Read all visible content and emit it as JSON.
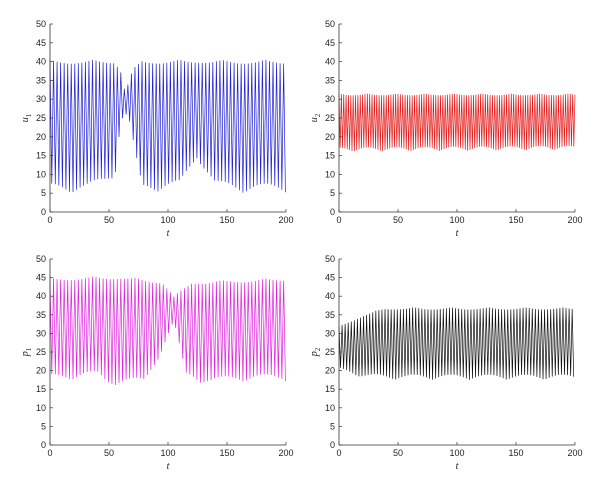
{
  "chart_data": [
    {
      "type": "line",
      "xlabel": "t",
      "ylabel": "u",
      "ylabel_sub": "1",
      "xlim": [
        0,
        200
      ],
      "ylim": [
        0,
        50
      ],
      "xticks": [
        "0",
        "50",
        "100",
        "150",
        "200"
      ],
      "yticks": [
        "0",
        "5",
        "10",
        "15",
        "20",
        "25",
        "30",
        "35",
        "40",
        "45",
        "50"
      ],
      "series": [
        {
          "color": "#1f1fd6",
          "period": 3.0,
          "band_high": [
            [
              0,
              40.5
            ],
            [
              55,
              40.5
            ],
            [
              60,
              37.5
            ],
            [
              63,
              33
            ],
            [
              66,
              34
            ],
            [
              70,
              38
            ],
            [
              78,
              40.5
            ],
            [
              200,
              40.5
            ]
          ],
          "band_low": [
            [
              0,
              5
            ],
            [
              30,
              5
            ],
            [
              45,
              7
            ],
            [
              55,
              9
            ],
            [
              60,
              24
            ],
            [
              66,
              26
            ],
            [
              72,
              15
            ],
            [
              78,
              5
            ],
            [
              110,
              6
            ],
            [
              125,
              14
            ],
            [
              140,
              6
            ],
            [
              160,
              5
            ],
            [
              200,
              5
            ]
          ]
        }
      ]
    },
    {
      "type": "line",
      "xlabel": "t",
      "ylabel": "u",
      "ylabel_sub": "2",
      "xlim": [
        0,
        200
      ],
      "ylim": [
        0,
        50
      ],
      "xticks": [
        "0",
        "50",
        "100",
        "150",
        "200"
      ],
      "yticks": [
        "0",
        "5",
        "10",
        "15",
        "20",
        "25",
        "30",
        "35",
        "40",
        "45",
        "50"
      ],
      "series": [
        {
          "color": "#e41a1a",
          "period": 2.0,
          "band_high": [
            [
              0,
              31.5
            ],
            [
              200,
              31.5
            ]
          ],
          "band_low": [
            [
              0,
              16
            ],
            [
              200,
              16.5
            ]
          ]
        }
      ]
    },
    {
      "type": "line",
      "xlabel": "t",
      "ylabel": "p",
      "ylabel_sub": "1",
      "xlim": [
        0,
        200
      ],
      "ylim": [
        0,
        50
      ],
      "xticks": [
        "0",
        "50",
        "100",
        "150",
        "200"
      ],
      "yticks": [
        "0",
        "5",
        "10",
        "15",
        "20",
        "25",
        "30",
        "35",
        "40",
        "45",
        "50"
      ],
      "series": [
        {
          "color": "#e020e0",
          "period": 3.0,
          "band_high": [
            [
              0,
              45
            ],
            [
              60,
              45.5
            ],
            [
              95,
              44
            ],
            [
              105,
              40
            ],
            [
              120,
              44
            ],
            [
              200,
              45
            ]
          ],
          "band_low": [
            [
              0,
              17
            ],
            [
              40,
              18
            ],
            [
              48,
              16
            ],
            [
              80,
              16
            ],
            [
              95,
              25
            ],
            [
              105,
              33
            ],
            [
              115,
              18
            ],
            [
              135,
              16
            ],
            [
              160,
              17
            ],
            [
              200,
              17
            ]
          ]
        }
      ]
    },
    {
      "type": "line",
      "xlabel": "t",
      "ylabel": "p",
      "ylabel_sub": "2",
      "xlim": [
        0,
        200
      ],
      "ylim": [
        0,
        50
      ],
      "xticks": [
        "0",
        "50",
        "100",
        "150",
        "200"
      ],
      "yticks": [
        "0",
        "5",
        "10",
        "15",
        "20",
        "25",
        "30",
        "35",
        "40",
        "45",
        "50"
      ],
      "series": [
        {
          "color": "#111111",
          "period": 2.6,
          "band_high": [
            [
              0,
              32
            ],
            [
              20,
              35
            ],
            [
              40,
              37
            ],
            [
              200,
              37
            ]
          ],
          "band_low": [
            [
              0,
              20
            ],
            [
              20,
              18
            ],
            [
              40,
              17.5
            ],
            [
              200,
              17.5
            ]
          ]
        }
      ]
    }
  ]
}
